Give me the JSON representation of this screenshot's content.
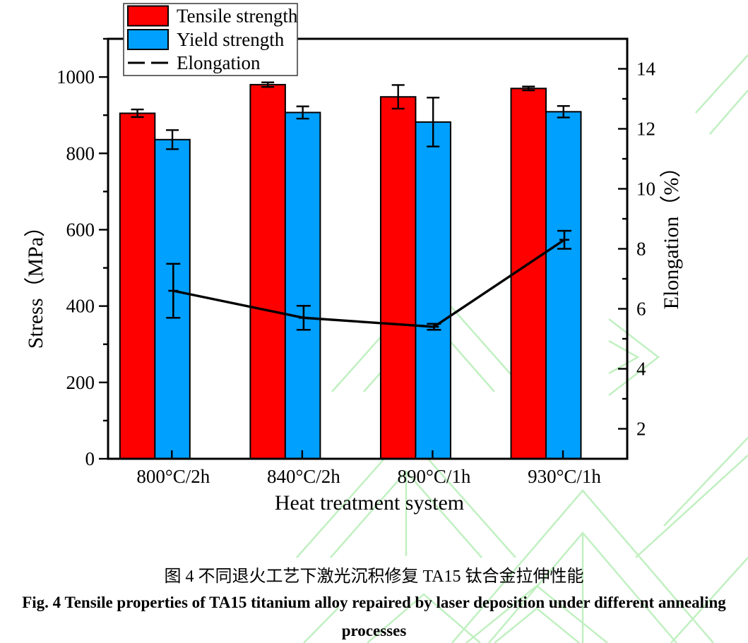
{
  "figure": {
    "caption_zh": "图 4  不同退火工艺下激光沉积修复 TA15 钛合金拉伸性能",
    "caption_en_line1": "Fig. 4 Tensile properties of TA15 titanium alloy repaired by laser deposition under different annealing",
    "caption_en_line2": "processes"
  },
  "chart_data": {
    "type": "bar",
    "subtype": "grouped-bars-with-line-overlay",
    "categories": [
      "800°C/2h",
      "840°C/2h",
      "890°C/1h",
      "930°C/1h"
    ],
    "series": [
      {
        "name": "Tensile strength",
        "type": "bar",
        "axis": "left",
        "color": "#ff0000",
        "values": [
          905,
          980,
          948,
          970
        ],
        "errors": [
          10,
          6,
          31,
          5
        ]
      },
      {
        "name": "Yield strength",
        "type": "bar",
        "axis": "left",
        "color": "#00a0ff",
        "values": [
          836,
          907,
          882,
          909
        ],
        "errors": [
          25,
          16,
          64,
          15
        ]
      },
      {
        "name": "Elongation",
        "type": "line",
        "axis": "right",
        "color": "#000000",
        "values": [
          6.6,
          5.7,
          5.4,
          8.3
        ],
        "errors": [
          0.9,
          0.4,
          0.1,
          0.3
        ]
      }
    ],
    "x_axis": {
      "label": "Heat treatment system"
    },
    "left_axis": {
      "label": "Stress（MPa）",
      "min": 0,
      "max": 1100,
      "major_ticks": [
        0,
        200,
        400,
        600,
        800,
        1000
      ],
      "minor_step": 100
    },
    "right_axis": {
      "label": "Elongation（%）",
      "min": 1,
      "max": 15,
      "major_ticks": [
        2,
        4,
        6,
        8,
        10,
        12,
        14
      ],
      "minor_step": 1
    },
    "legend": [
      "Tensile strength",
      "Yield strength",
      "Elongation"
    ],
    "legend_position": "top-left",
    "grid": false
  },
  "watermark": {
    "color": "#8fe48f"
  }
}
